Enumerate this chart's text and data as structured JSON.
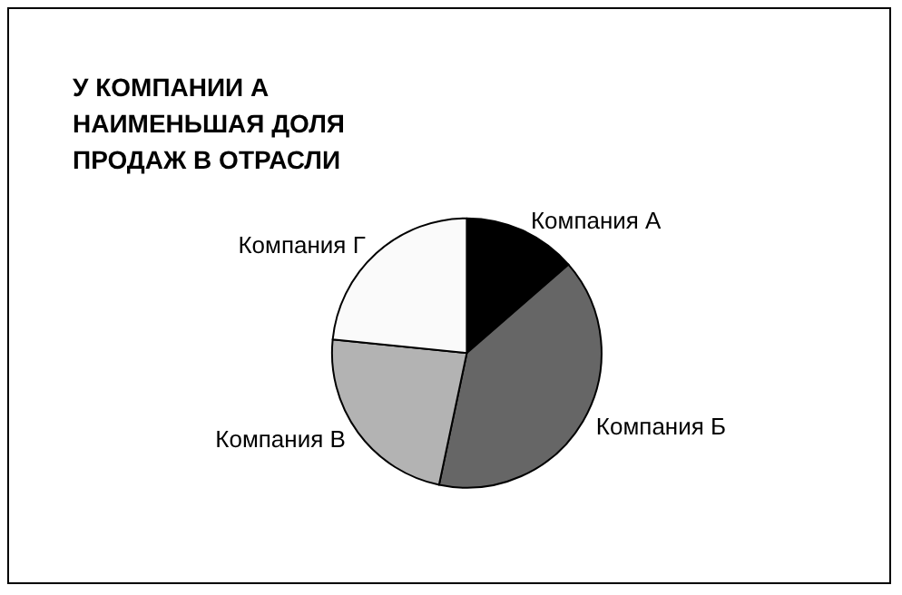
{
  "chart_data": {
    "type": "pie",
    "title": "У КОМПАНИИ А НАИМЕНЬШАЯ ДОЛЯ ПРОДАЖ В ОТРАСЛИ",
    "categories": [
      "Компания А",
      "Компания Б",
      "Компания В",
      "Компания Г"
    ],
    "values": [
      13.6,
      39.7,
      23.3,
      23.4
    ],
    "colors": [
      "#000000",
      "#666666",
      "#b3b3b3",
      "#fafafa"
    ]
  }
}
